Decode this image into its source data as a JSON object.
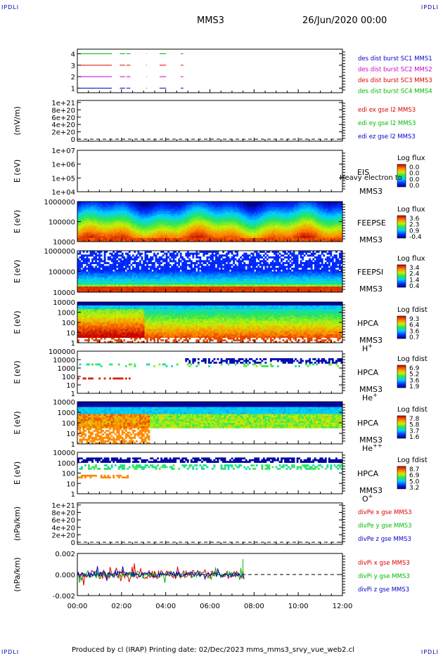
{
  "corners": {
    "tl": "IPDLI",
    "tr": "IPDLI",
    "bl": "IPDLI",
    "br": "IPDLI"
  },
  "header": {
    "spacecraft": "MMS3",
    "datetime": "26/Jun/2020 00:00"
  },
  "footer": {
    "text": "Produced by cl (IRAP)   Printing date: 02/Dec/2023   mms_mms3_srvy_vue_web2.cl"
  },
  "colors": {
    "red": "#dd0000",
    "green": "#00bb00",
    "blue": "#0000cc",
    "magenta": "#cc00cc"
  },
  "chart_data": [
    {
      "id": "p1",
      "type": "line",
      "yticks": [
        "1",
        "2",
        "3",
        "4"
      ],
      "legend": [
        {
          "text": "des dist burst SC1 MMS1",
          "color": "#0000cc"
        },
        {
          "text": "des dist burst SC2 MMS2",
          "color": "#cc00cc"
        },
        {
          "text": "des dist burst SC3 MMS3",
          "color": "#dd0000"
        },
        {
          "text": "des dist burst SC4 MMS4",
          "color": "#00bb00"
        }
      ]
    },
    {
      "id": "p2",
      "type": "line",
      "ylabel": "(mV/m)",
      "yticks": [
        "0",
        "2e+20",
        "4e+20",
        "6e+20",
        "8e+20",
        "1e+21"
      ],
      "legend": [
        {
          "text": "edi ex gse l2 MMS3",
          "color": "#dd0000"
        },
        {
          "text": "edi ey gse l2 MMS3",
          "color": "#00bb00"
        },
        {
          "text": "edi ez gse l2 MMS3",
          "color": "#0000cc"
        }
      ]
    },
    {
      "id": "p3",
      "type": "heatmap",
      "ylabel": "E (eV)",
      "yticks": [
        "1e+04",
        "1e+05",
        "1e+06",
        "1e+07"
      ],
      "labels": [
        "EIS",
        "MMS3"
      ],
      "overlay": "Heavy electron to",
      "cb_title": "Log flux",
      "cb_ticks": [
        "0.0",
        "0.0",
        "0.0",
        "0.0"
      ]
    },
    {
      "id": "p4",
      "type": "heatmap",
      "ylabel": "E (eV)",
      "yticks": [
        "10000",
        "100000",
        "1000000"
      ],
      "labels": [
        "FEEPSE",
        "MMS3"
      ],
      "cb_title": "Log flux",
      "cb_ticks": [
        "3.6",
        "2.3",
        "0.9",
        "-0.4"
      ]
    },
    {
      "id": "p5",
      "type": "heatmap",
      "ylabel": "E (eV)",
      "yticks": [
        "10000",
        "100000",
        "1000000"
      ],
      "labels": [
        "FEEPSI",
        "MMS3"
      ],
      "cb_title": "Log flux",
      "cb_ticks": [
        "3.4",
        "2.4",
        "1.4",
        "0.4"
      ]
    },
    {
      "id": "p6",
      "type": "heatmap",
      "ylabel": "E (eV)",
      "yticks": [
        "1",
        "10",
        "100",
        "1000",
        "10000"
      ],
      "labels": [
        "HPCA",
        "MMS3"
      ],
      "species": "H",
      "sup": "+",
      "cb_title": "Log fdist",
      "cb_ticks": [
        "9.3",
        "6.4",
        "3.6",
        "0.7"
      ]
    },
    {
      "id": "p7",
      "type": "heatmap",
      "ylabel": "E (eV)",
      "yticks": [
        "1",
        "10",
        "100",
        "1000",
        "10000",
        "100000"
      ],
      "labels": [
        "HPCA",
        "MMS3"
      ],
      "species": "He",
      "sup": "+",
      "cb_title": "Log fdist",
      "cb_ticks": [
        "6.9",
        "5.2",
        "3.6",
        "1.9"
      ]
    },
    {
      "id": "p8",
      "type": "heatmap",
      "ylabel": "E (eV)",
      "yticks": [
        "1",
        "10",
        "100",
        "1000",
        "10000"
      ],
      "labels": [
        "HPCA",
        "MMS3"
      ],
      "species": "He",
      "sup": "++",
      "cb_title": "Log fdist",
      "cb_ticks": [
        "7.8",
        "5.8",
        "3.7",
        "1.6"
      ]
    },
    {
      "id": "p9",
      "type": "heatmap",
      "ylabel": "E (eV)",
      "yticks": [
        "1",
        "10",
        "100",
        "1000",
        "10000"
      ],
      "labels": [
        "HPCA",
        "MMS3"
      ],
      "species": "O",
      "sup": "+",
      "cb_title": "Log fdist",
      "cb_ticks": [
        "8.7",
        "6.9",
        "5.0",
        "3.2"
      ]
    },
    {
      "id": "p10",
      "type": "line",
      "ylabel": "(nPa/km)",
      "yticks": [
        "0",
        "2e+20",
        "4e+20",
        "6e+20",
        "8e+20",
        "1e+21"
      ],
      "legend": [
        {
          "text": "divPe x gse MMS3",
          "color": "#dd0000"
        },
        {
          "text": "divPe y gse MMS3",
          "color": "#00bb00"
        },
        {
          "text": "divPe z gse MMS3",
          "color": "#0000cc"
        }
      ]
    },
    {
      "id": "p11",
      "type": "line",
      "ylabel": "(nPa/km)",
      "yticks": [
        "-0.002",
        "0.000",
        "0.002"
      ],
      "legend": [
        {
          "text": "divPi x gse MMS3",
          "color": "#dd0000"
        },
        {
          "text": "divPi y gse MMS3",
          "color": "#00bb00"
        },
        {
          "text": "divPi z gse MMS3",
          "color": "#0000cc"
        }
      ]
    }
  ],
  "xaxis": {
    "ticks": [
      "00:00",
      "02:00",
      "04:00",
      "06:00",
      "08:00",
      "10:00",
      "12:00"
    ]
  }
}
